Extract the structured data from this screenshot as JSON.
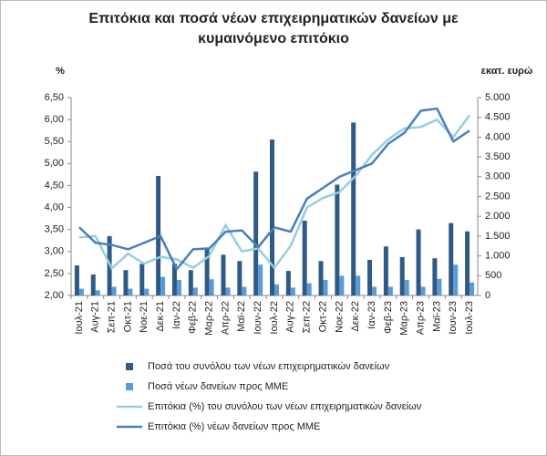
{
  "chart_data": {
    "type": "bar-line",
    "title": "Επιτόκια και ποσά νέων επιχειρηματικών δανείων με κυμαινόμενο επιτόκιο",
    "y_label": "%",
    "y2_label": "εκατ. ευρώ",
    "categories": [
      "Ιουλ-21",
      "Αυγ-21",
      "Σεπ-21",
      "Οκτ-21",
      "Νοε-21",
      "Δεκ-21",
      "Ιαν-22",
      "Φεβ-22",
      "Μαρ-22",
      "Απρ-22",
      "Μαϊ-22",
      "Ιουν-22",
      "Ιουλ-22",
      "Αυγ-22",
      "Σεπ-22",
      "Οκτ-22",
      "Νοε-22",
      "Δεκ-22",
      "Ιαν-23",
      "Φεβ-23",
      "Μαρ-23",
      "Απρ-23",
      "Μαϊ-23",
      "Ιουν-23",
      "Ιουλ-23"
    ],
    "ylim": [
      2.0,
      6.5
    ],
    "yticks": [
      {
        "value": 2.0,
        "label": "2,00"
      },
      {
        "value": 2.5,
        "label": "2,50"
      },
      {
        "value": 3.0,
        "label": "3,00"
      },
      {
        "value": 3.5,
        "label": "3,50"
      },
      {
        "value": 4.0,
        "label": "4,00"
      },
      {
        "value": 4.5,
        "label": "4,50"
      },
      {
        "value": 5.0,
        "label": "5,00"
      },
      {
        "value": 5.5,
        "label": "5,50"
      },
      {
        "value": 6.0,
        "label": "6,00"
      },
      {
        "value": 6.5,
        "label": "6,50"
      }
    ],
    "y2lim": [
      0,
      5000
    ],
    "y2ticks": [
      0,
      500,
      {
        "value": 1000,
        "label": "1.000"
      },
      {
        "value": 1500,
        "label": "1.500"
      },
      {
        "value": 2000,
        "label": "2.000"
      },
      {
        "value": 2500,
        "label": "2.500"
      },
      {
        "value": 3000,
        "label": "3.000"
      },
      {
        "value": 3500,
        "label": "3.500"
      },
      {
        "value": 4000,
        "label": "4.000"
      },
      {
        "value": 4500,
        "label": "4.500"
      },
      {
        "value": 5000,
        "label": "5.000"
      }
    ],
    "series": [
      {
        "name": "Ποσά του συνόλου των νέων επιχειρηματικών δανείων",
        "type": "bar",
        "axis": "y2",
        "color": "#2f5a86",
        "values": [
          760,
          530,
          1500,
          640,
          800,
          3020,
          800,
          640,
          1170,
          1030,
          870,
          3130,
          3940,
          620,
          1890,
          870,
          2800,
          4370,
          900,
          1240,
          970,
          1670,
          940,
          1830,
          1620
        ]
      },
      {
        "name": "Ποσά νέων δανείων προς ΜΜΕ",
        "type": "bar",
        "axis": "y2",
        "color": "#5b9bd5",
        "values": [
          170,
          130,
          220,
          170,
          170,
          470,
          390,
          200,
          410,
          200,
          220,
          780,
          280,
          200,
          310,
          390,
          500,
          500,
          220,
          220,
          390,
          220,
          420,
          780,
          330
        ]
      },
      {
        "name": "Επιτόκια (%) του συνόλου των νέων επιχειρηματικών δανείων",
        "type": "line",
        "color": "#93cfe0",
        "values": [
          3.32,
          3.35,
          2.62,
          2.95,
          2.72,
          2.88,
          2.82,
          2.63,
          2.9,
          3.6,
          3.0,
          3.07,
          2.63,
          3.13,
          4.0,
          4.22,
          4.35,
          4.72,
          5.2,
          5.55,
          5.8,
          5.83,
          6.0,
          5.6,
          6.1
        ]
      },
      {
        "name": "Επιτόκια (%) νέων δανείων προς ΜΜΕ",
        "type": "line",
        "color": "#4a7ebb",
        "values": [
          3.55,
          3.2,
          3.15,
          3.05,
          3.2,
          3.35,
          2.6,
          3.05,
          3.07,
          3.45,
          3.48,
          3.1,
          3.55,
          3.45,
          4.2,
          4.45,
          4.7,
          4.85,
          5.0,
          5.45,
          5.7,
          6.2,
          6.25,
          5.5,
          5.75
        ]
      }
    ]
  }
}
